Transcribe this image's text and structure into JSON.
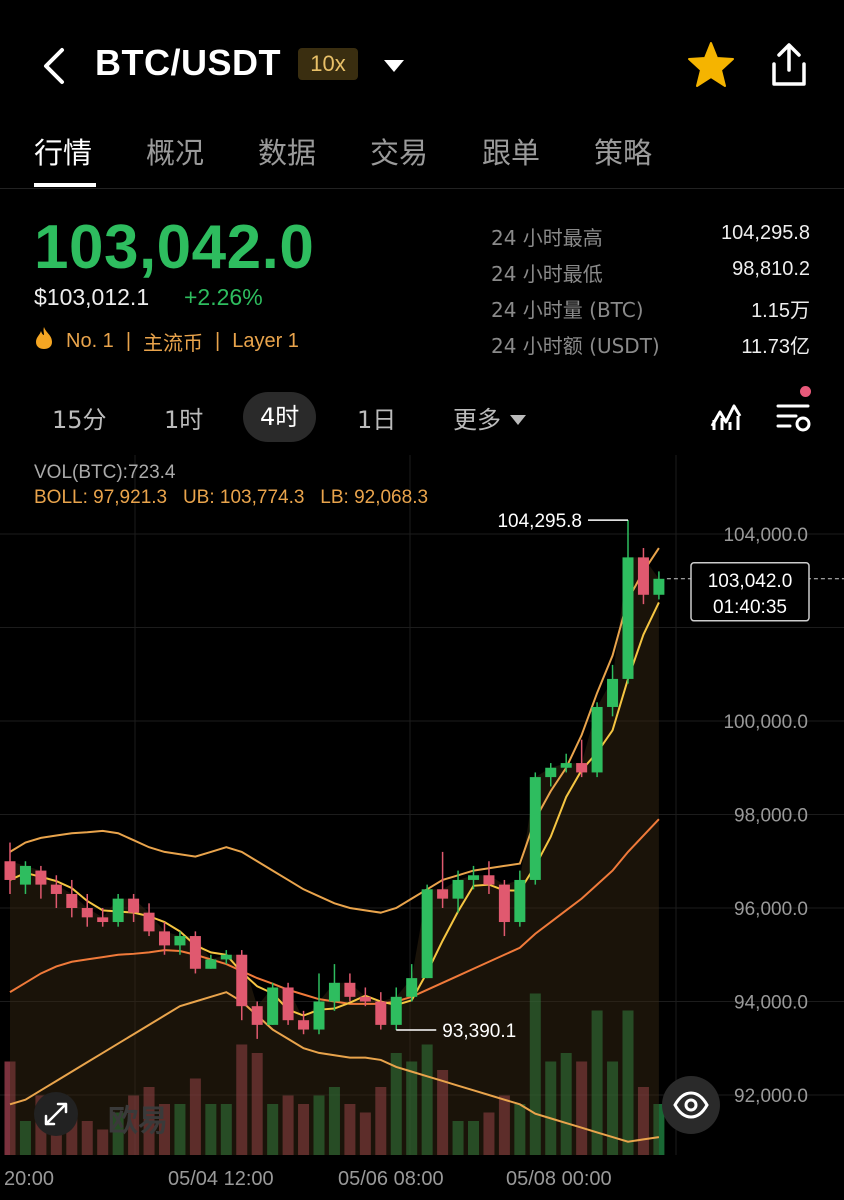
{
  "header": {
    "pair": "BTC/USDT",
    "leverage": "10x",
    "icons": [
      "back-arrow-icon",
      "chevron-down-icon",
      "star-icon",
      "share-icon"
    ],
    "star_color": "#f5b400"
  },
  "tabs": [
    {
      "label": "行情",
      "active": true
    },
    {
      "label": "概况",
      "active": false
    },
    {
      "label": "数据",
      "active": false
    },
    {
      "label": "交易",
      "active": false
    },
    {
      "label": "跟单",
      "active": false
    },
    {
      "label": "策略",
      "active": false
    }
  ],
  "price": {
    "last": "103,042.0",
    "usd": "$103,012.1",
    "change": "+2.26%",
    "rank": "No. 1",
    "tag1": "主流币",
    "tag2": "Layer 1",
    "color_up": "#2ebd5f",
    "color_down": "#e0596f"
  },
  "stats": [
    {
      "label": "24 小时最高",
      "value": "104,295.8"
    },
    {
      "label": "24 小时最低",
      "value": "98,810.2"
    },
    {
      "label": "24 小时量 (BTC)",
      "value": "1.15万"
    },
    {
      "label": "24 小时额 (USDT)",
      "value": "11.73亿"
    }
  ],
  "intervals": {
    "items": [
      "15分",
      "1时",
      "4时",
      "1日"
    ],
    "active": "4时",
    "more": "更多"
  },
  "indicators": {
    "vol": "VOL(BTC):723.4",
    "boll": "BOLL: 97,921.3",
    "ub": "UB: 103,774.3",
    "lb": "LB: 92,068.3"
  },
  "chart_data": {
    "type": "candlestick",
    "y_ticks": [
      "104,000.0",
      "100,000.0",
      "98,000.0",
      "96,000.0",
      "94,000.0",
      "92,000.0"
    ],
    "y_tick_values": [
      104000,
      100000,
      98000,
      96000,
      94000,
      92000
    ],
    "x_ticks": [
      "20:00",
      "05/04 12:00",
      "05/06 08:00",
      "05/08 00:00"
    ],
    "high_label": "104,295.8",
    "low_label": "93,390.1",
    "current_price": "103,042.0",
    "countdown": "01:40:35",
    "candles": [
      {
        "o": 97000,
        "c": 96600,
        "h": 97400,
        "l": 96300
      },
      {
        "o": 96500,
        "c": 96900,
        "h": 97000,
        "l": 96300
      },
      {
        "o": 96800,
        "c": 96500,
        "h": 96900,
        "l": 96200
      },
      {
        "o": 96500,
        "c": 96300,
        "h": 96700,
        "l": 96000
      },
      {
        "o": 96300,
        "c": 96000,
        "h": 96600,
        "l": 95800
      },
      {
        "o": 96000,
        "c": 95800,
        "h": 96300,
        "l": 95600
      },
      {
        "o": 95800,
        "c": 95700,
        "h": 96000,
        "l": 95600
      },
      {
        "o": 95700,
        "c": 96200,
        "h": 96300,
        "l": 95600
      },
      {
        "o": 96200,
        "c": 95900,
        "h": 96300,
        "l": 95700
      },
      {
        "o": 95900,
        "c": 95500,
        "h": 96100,
        "l": 95400
      },
      {
        "o": 95500,
        "c": 95200,
        "h": 95700,
        "l": 95000
      },
      {
        "o": 95200,
        "c": 95400,
        "h": 95500,
        "l": 95000
      },
      {
        "o": 95400,
        "c": 94700,
        "h": 95500,
        "l": 94600
      },
      {
        "o": 94700,
        "c": 94900,
        "h": 95000,
        "l": 94700
      },
      {
        "o": 94900,
        "c": 95000,
        "h": 95100,
        "l": 94800
      },
      {
        "o": 95000,
        "c": 93900,
        "h": 95100,
        "l": 93600
      },
      {
        "o": 93900,
        "c": 93500,
        "h": 94000,
        "l": 93200
      },
      {
        "o": 93500,
        "c": 94300,
        "h": 94400,
        "l": 93500
      },
      {
        "o": 94300,
        "c": 93600,
        "h": 94400,
        "l": 93500
      },
      {
        "o": 93600,
        "c": 93400,
        "h": 93800,
        "l": 93300
      },
      {
        "o": 93400,
        "c": 94000,
        "h": 94600,
        "l": 93300
      },
      {
        "o": 94000,
        "c": 94400,
        "h": 94800,
        "l": 93800
      },
      {
        "o": 94400,
        "c": 94100,
        "h": 94600,
        "l": 94000
      },
      {
        "o": 94100,
        "c": 94000,
        "h": 94300,
        "l": 93900
      },
      {
        "o": 94000,
        "c": 93500,
        "h": 94200,
        "l": 93400
      },
      {
        "o": 93500,
        "c": 94100,
        "h": 94300,
        "l": 93390
      },
      {
        "o": 94100,
        "c": 94500,
        "h": 94800,
        "l": 94000
      },
      {
        "o": 94500,
        "c": 96400,
        "h": 96500,
        "l": 94500
      },
      {
        "o": 96400,
        "c": 96200,
        "h": 97200,
        "l": 96000
      },
      {
        "o": 96200,
        "c": 96600,
        "h": 96800,
        "l": 95900
      },
      {
        "o": 96600,
        "c": 96700,
        "h": 96900,
        "l": 96400
      },
      {
        "o": 96700,
        "c": 96500,
        "h": 97000,
        "l": 96300
      },
      {
        "o": 96500,
        "c": 95700,
        "h": 96600,
        "l": 95400
      },
      {
        "o": 95700,
        "c": 96600,
        "h": 96800,
        "l": 95600
      },
      {
        "o": 96600,
        "c": 98800,
        "h": 98900,
        "l": 96500
      },
      {
        "o": 98800,
        "c": 99000,
        "h": 99100,
        "l": 98600
      },
      {
        "o": 99000,
        "c": 99100,
        "h": 99300,
        "l": 98900
      },
      {
        "o": 99100,
        "c": 98900,
        "h": 99600,
        "l": 98800
      },
      {
        "o": 98900,
        "c": 100300,
        "h": 100400,
        "l": 98800
      },
      {
        "o": 100300,
        "c": 100900,
        "h": 101200,
        "l": 100100
      },
      {
        "o": 100900,
        "c": 103500,
        "h": 104300,
        "l": 100800
      },
      {
        "o": 103500,
        "c": 102700,
        "h": 103700,
        "l": 102500
      },
      {
        "o": 102700,
        "c": 103042,
        "h": 103200,
        "l": 102600
      }
    ],
    "volumes": [
      0.55,
      0.2,
      0.35,
      0.3,
      0.25,
      0.2,
      0.15,
      0.25,
      0.35,
      0.4,
      0.3,
      0.3,
      0.45,
      0.3,
      0.3,
      0.65,
      0.6,
      0.3,
      0.35,
      0.3,
      0.35,
      0.4,
      0.3,
      0.25,
      0.4,
      0.6,
      0.55,
      0.65,
      0.5,
      0.2,
      0.2,
      0.25,
      0.35,
      0.3,
      0.95,
      0.55,
      0.6,
      0.55,
      0.85,
      0.55,
      0.85,
      0.4,
      0.3
    ],
    "boll_mid": [
      94200,
      94400,
      94600,
      94750,
      94850,
      94900,
      94950,
      95000,
      95020,
      95050,
      95100,
      95080,
      95000,
      94900,
      94800,
      94650,
      94500,
      94380,
      94250,
      94150,
      94050,
      94000,
      93950,
      93950,
      93950,
      94000,
      94100,
      94250,
      94400,
      94550,
      94700,
      94850,
      95000,
      95150,
      95450,
      95700,
      95950,
      96200,
      96500,
      96800,
      97200,
      97550,
      97900
    ],
    "boll_up": [
      97200,
      97400,
      97500,
      97550,
      97600,
      97620,
      97650,
      97600,
      97450,
      97300,
      97200,
      97150,
      97100,
      97200,
      97300,
      97200,
      97000,
      96800,
      96600,
      96400,
      96250,
      96100,
      96000,
      95950,
      95900,
      96000,
      96200,
      96400,
      96600,
      96700,
      96800,
      96850,
      96900,
      96950,
      97900,
      98500,
      99000,
      99700,
      100600,
      101400,
      102600,
      103200,
      103700
    ],
    "boll_low": [
      91800,
      91900,
      92100,
      92300,
      92500,
      92700,
      92900,
      93100,
      93300,
      93500,
      93700,
      93900,
      94000,
      94100,
      94200,
      94000,
      93700,
      93400,
      93200,
      93000,
      92900,
      92850,
      92800,
      92800,
      92750,
      92600,
      92500,
      92400,
      92300,
      92200,
      92100,
      92000,
      91900,
      91800,
      91600,
      91500,
      91400,
      91300,
      91200,
      91100,
      91000,
      91050,
      91100
    ]
  },
  "watermark": "欧易"
}
